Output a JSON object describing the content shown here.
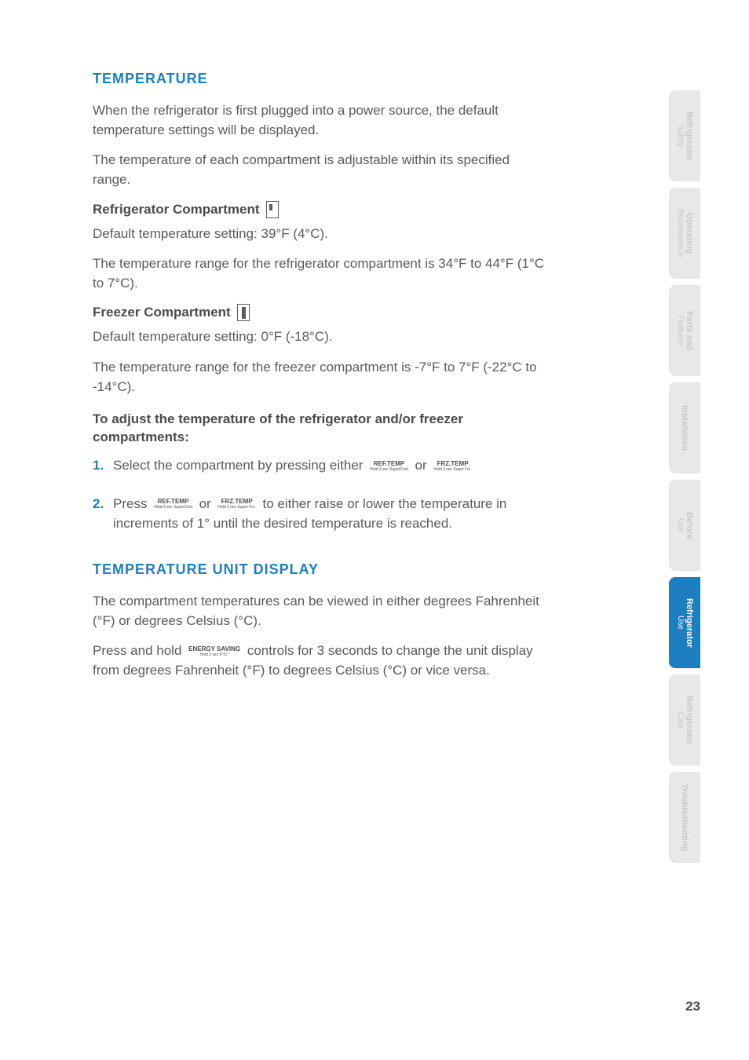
{
  "page_number": "23",
  "colors": {
    "accent": "#1d7ec0",
    "body_text": "#5a5a5a",
    "heading_text": "#4a4a4a",
    "tab_inactive_bg": "#e8e8e8",
    "tab_inactive_text": "#c8c8c8",
    "tab_active_bg": "#1d7ec0",
    "tab_active_text": "#ffffff",
    "background": "#ffffff"
  },
  "typography": {
    "body_fontsize_pt": 13,
    "heading_fontsize_pt": 14,
    "tab_fontsize_pt": 8
  },
  "tabs": [
    {
      "line1": "Refrigerator",
      "line2": "Safety",
      "active": false
    },
    {
      "line1": "Operating",
      "line2": "Requirements",
      "active": false
    },
    {
      "line1": "Parts and",
      "line2": "Features",
      "active": false
    },
    {
      "line1": "Installation",
      "line2": "",
      "active": false
    },
    {
      "line1": "Before",
      "line2": "Use",
      "active": false
    },
    {
      "line1": "Refrigerator",
      "line2": "Use",
      "active": true
    },
    {
      "line1": "Refrigerator",
      "line2": "Care",
      "active": false
    },
    {
      "line1": "Troubleshooting",
      "line2": "",
      "active": false
    }
  ],
  "section1": {
    "heading": "TEMPERATURE",
    "p1": "When the refrigerator is first plugged into a power source, the default temperature settings will be displayed.",
    "p2": "The temperature of each compartment is adjustable within its specified range.",
    "refrigerator": {
      "heading": "Refrigerator Compartment",
      "p1": "Default temperature setting: 39°F (4°C).",
      "p2": "The temperature range for the refrigerator compartment is 34°F to 44°F (1°C to 7°C)."
    },
    "freezer": {
      "heading": "Freezer Compartment",
      "p1": "Default temperature setting: 0°F (-18°C).",
      "p2": "The temperature range for the freezer compartment is -7°F to 7°F (-22°C to -14°C)."
    },
    "instructions": {
      "heading": "To adjust the temperature of the refrigerator and/or freezer compartments:",
      "step1": {
        "num": "1.",
        "text_a": "Select the compartment by pressing either ",
        "text_or": " or ",
        "btn1_top": "REF.TEMP",
        "btn1_sub": "Hold 3 sec SuperCool",
        "btn2_top": "FRZ.TEMP",
        "btn2_sub": "Hold 3 sec Super Frz."
      },
      "step2": {
        "num": "2.",
        "text_a": "Press   ",
        "btn1_top": "REF.TEMP",
        "btn1_sub": "Hold 3 sec SuperCool",
        "text_or": " or ",
        "btn2_top": "FRZ.TEMP",
        "btn2_sub": "Hold 3 sec Super Frz.",
        "text_b": " to either raise or lower the temperature in increments of 1° until the desired temperature is reached."
      }
    }
  },
  "section2": {
    "heading": "TEMPERATURE UNIT DISPLAY",
    "p1": "The compartment temperatures can be viewed in either degrees Fahrenheit (°F) or degrees Celsius (°C).",
    "p2_a": "Press and hold   ",
    "btn_top": "ENERGY SAVING",
    "btn_sub": "Hold 3 sec F°/C°",
    "p2_b": "  controls for 3 seconds to change the unit display from degrees Fahrenheit (°F) to degrees Celsius (°C) or vice versa."
  }
}
